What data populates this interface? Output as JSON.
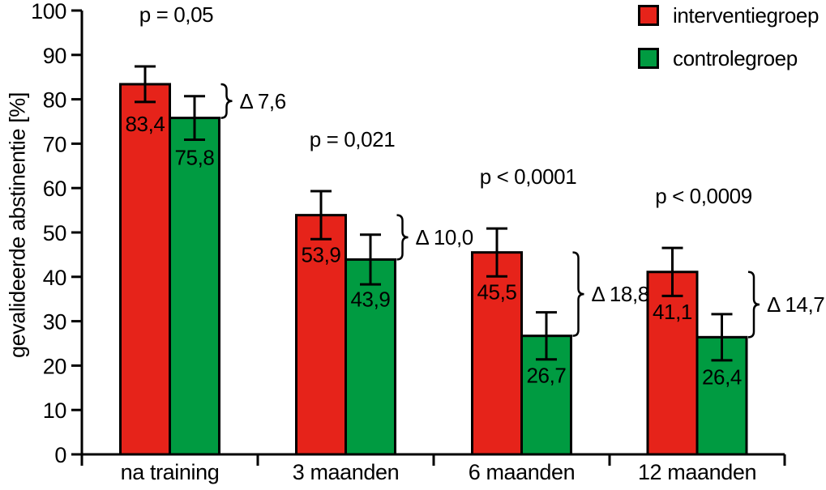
{
  "chart_data": {
    "type": "bar",
    "title": "",
    "xlabel": "",
    "ylabel": "gevalideerde abstinentie [%]",
    "ylim": [
      0,
      100
    ],
    "yticks": [
      0,
      10,
      20,
      30,
      40,
      50,
      60,
      70,
      80,
      90,
      100
    ],
    "grid": false,
    "legend_position": "top-right",
    "categories": [
      "na training",
      "3 maanden",
      "6 maanden",
      "12 maanden"
    ],
    "series": [
      {
        "name": "interventiegroep",
        "color": "#E6231A",
        "values": [
          83.4,
          53.9,
          45.5,
          41.1
        ],
        "value_labels": [
          "83,4",
          "53,9",
          "45,5",
          "41,1"
        ],
        "error": [
          4.0,
          5.4,
          5.4,
          5.4
        ]
      },
      {
        "name": "controlegroep",
        "color": "#009B41",
        "values": [
          75.8,
          43.9,
          26.7,
          26.4
        ],
        "value_labels": [
          "75,8",
          "43,9",
          "26,7",
          "26,4"
        ],
        "error": [
          4.9,
          5.6,
          5.3,
          5.2
        ]
      }
    ],
    "annotations": {
      "p_values": [
        "p = 0,05",
        "p = 0,021",
        "p < 0,0001",
        "p < 0,0009"
      ],
      "deltas": [
        7.6,
        10.0,
        18.8,
        14.7
      ],
      "delta_labels": [
        "Δ 7,6",
        "Δ 10,0",
        "Δ 18,8",
        "Δ 14,7"
      ]
    },
    "colors": {
      "bar_border": "#000000",
      "axis": "#000000",
      "text": "#000000",
      "background": "#FFFFFF"
    }
  }
}
